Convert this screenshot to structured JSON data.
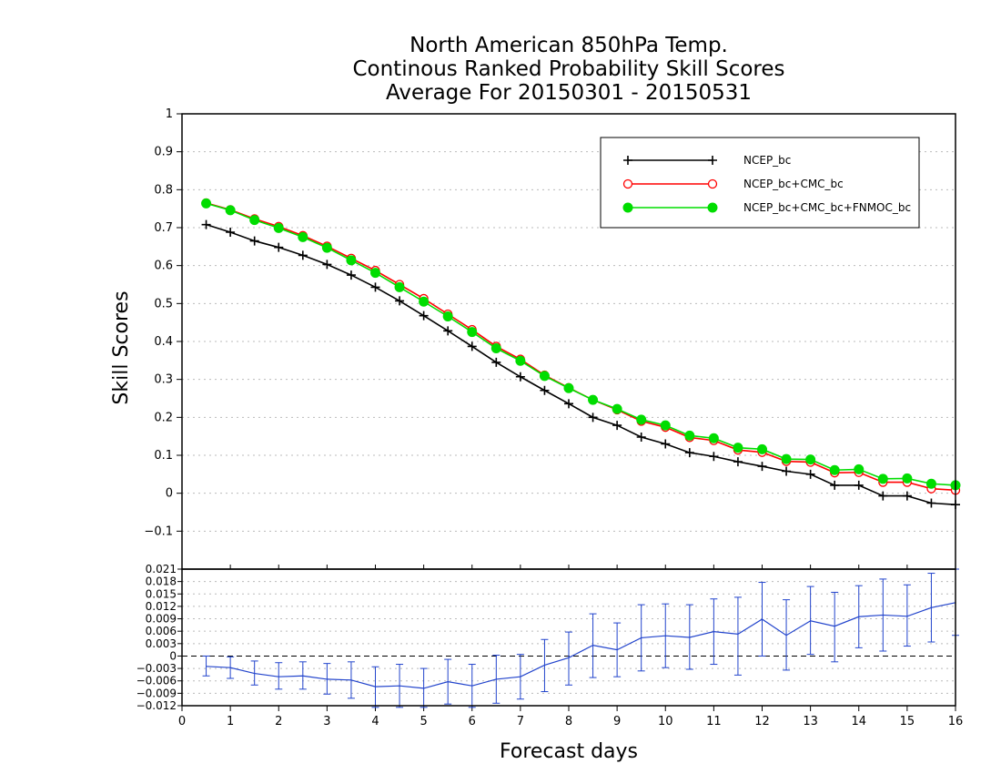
{
  "chart_data": [
    {
      "type": "line",
      "title": [
        "North American 850hPa Temp.",
        "Continous Ranked Probability Skill Scores",
        "Average For 20150301 - 20150531"
      ],
      "xlabel": "",
      "ylabel": "Skill Scores",
      "xlim": [
        0,
        16
      ],
      "ylim": [
        -0.2,
        1
      ],
      "yticks": [
        "−0.1",
        "0",
        "0.1",
        "0.2",
        "0.3",
        "0.4",
        "0.5",
        "0.6",
        "0.7",
        "0.8",
        "0.9",
        "1"
      ],
      "grid": true,
      "legend_position": "top-right",
      "x": [
        0.5,
        1,
        1.5,
        2,
        2.5,
        3,
        3.5,
        4,
        4.5,
        5,
        5.5,
        6,
        6.5,
        7,
        7.5,
        8,
        8.5,
        9,
        9.5,
        10,
        10.5,
        11,
        11.5,
        12,
        12.5,
        13,
        13.5,
        14,
        14.5,
        15,
        15.5,
        16
      ],
      "series": [
        {
          "name": "NCEP_bc",
          "color": "#000000",
          "marker": "plus",
          "values": [
            0.708,
            0.688,
            0.665,
            0.648,
            0.627,
            0.603,
            0.575,
            0.543,
            0.507,
            0.468,
            0.428,
            0.387,
            0.345,
            0.307,
            0.271,
            0.236,
            0.2,
            0.179,
            0.148,
            0.13,
            0.107,
            0.097,
            0.083,
            0.071,
            0.058,
            0.05,
            0.021,
            0.021,
            -0.007,
            -0.007,
            -0.026,
            -0.03
          ]
        },
        {
          "name": "NCEP_bc+CMC_bc",
          "color": "#ff0000",
          "marker": "open-circle",
          "values": [
            0.765,
            0.747,
            0.723,
            0.703,
            0.679,
            0.651,
            0.619,
            0.587,
            0.55,
            0.513,
            0.472,
            0.431,
            0.387,
            0.353,
            0.311,
            0.278,
            0.246,
            0.22,
            0.19,
            0.174,
            0.147,
            0.139,
            0.114,
            0.108,
            0.084,
            0.082,
            0.054,
            0.055,
            0.029,
            0.029,
            0.012,
            0.008
          ]
        },
        {
          "name": "NCEP_bc+CMC_bc+FNMOC_bc",
          "color": "#00dd00",
          "marker": "filled-circle",
          "values": [
            0.764,
            0.746,
            0.72,
            0.699,
            0.675,
            0.647,
            0.614,
            0.581,
            0.543,
            0.505,
            0.466,
            0.425,
            0.382,
            0.349,
            0.309,
            0.277,
            0.246,
            0.222,
            0.194,
            0.179,
            0.152,
            0.145,
            0.12,
            0.116,
            0.09,
            0.089,
            0.061,
            0.063,
            0.038,
            0.039,
            0.025,
            0.021
          ]
        }
      ]
    },
    {
      "type": "line",
      "xlabel": "Forecast days",
      "ylabel": "",
      "xlim": [
        0,
        16
      ],
      "ylim": [
        -0.012,
        0.021
      ],
      "xticks": [
        "0",
        "1",
        "2",
        "3",
        "4",
        "5",
        "6",
        "7",
        "8",
        "9",
        "10",
        "11",
        "12",
        "13",
        "14",
        "15",
        "16"
      ],
      "yticks": [
        "−0.012",
        "−0.009",
        "−0.006",
        "−0.003",
        "0",
        "0.003",
        "0.006",
        "0.009",
        "0.012",
        "0.015",
        "0.018",
        "0.021"
      ],
      "grid": true,
      "x": [
        0.5,
        1,
        1.5,
        2,
        2.5,
        3,
        3.5,
        4,
        4.5,
        5,
        5.5,
        6,
        6.5,
        7,
        7.5,
        8,
        8.5,
        9,
        9.5,
        10,
        10.5,
        11,
        11.5,
        12,
        12.5,
        13,
        13.5,
        14,
        14.5,
        15,
        15.5,
        16
      ],
      "series": [
        {
          "color": "#2244cc",
          "values": [
            -0.0025,
            -0.0028,
            -0.0042,
            -0.005,
            -0.0048,
            -0.0056,
            -0.0058,
            -0.0074,
            -0.0072,
            -0.0078,
            -0.0062,
            -0.0072,
            -0.0056,
            -0.005,
            -0.0022,
            -0.0004,
            0.0026,
            0.0015,
            0.0044,
            0.0049,
            0.0045,
            0.0059,
            0.0053,
            0.0089,
            0.005,
            0.0085,
            0.0072,
            0.0095,
            0.0099,
            0.0096,
            0.0117,
            0.0129
          ],
          "err_low": [
            -0.0048,
            -0.0054,
            -0.007,
            -0.008,
            -0.008,
            -0.0092,
            -0.0102,
            -0.0124,
            -0.0124,
            -0.0124,
            -0.0116,
            -0.0124,
            -0.0114,
            -0.0104,
            -0.0086,
            -0.007,
            -0.0052,
            -0.005,
            -0.0036,
            -0.0028,
            -0.0032,
            -0.002,
            -0.0046,
            0.0,
            -0.0034,
            0.0004,
            -0.0014,
            0.002,
            0.0012,
            0.0024,
            0.0034,
            0.005
          ],
          "err_high": [
            0.0,
            -0.0002,
            -0.0012,
            -0.0016,
            -0.0014,
            -0.0018,
            -0.0014,
            -0.0026,
            -0.002,
            -0.003,
            -0.0008,
            -0.002,
            0.0002,
            0.0004,
            0.004,
            0.0058,
            0.0102,
            0.008,
            0.0124,
            0.0126,
            0.0124,
            0.0138,
            0.0142,
            0.0178,
            0.0136,
            0.0168,
            0.0154,
            0.017,
            0.0186,
            0.0172,
            0.02,
            0.021
          ]
        }
      ]
    }
  ]
}
